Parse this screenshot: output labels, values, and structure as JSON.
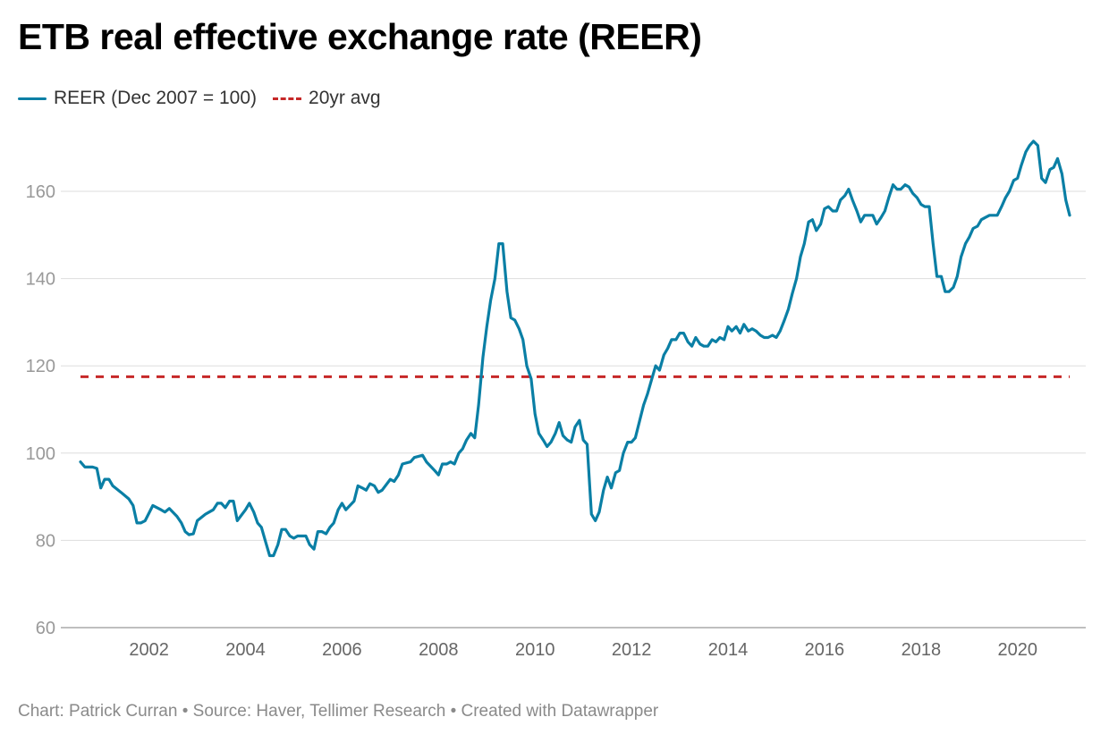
{
  "title": "ETB real effective exchange rate (REER)",
  "legend": [
    {
      "label": "REER (Dec 2007 = 100)",
      "color": "#0a7fa5",
      "style": "solid"
    },
    {
      "label": "20yr avg",
      "color": "#c62828",
      "style": "dashed"
    }
  ],
  "footer": "Chart: Patrick Curran • Source: Haver, Tellimer Research • Created with Datawrapper",
  "chart_data": {
    "type": "line",
    "title": "ETB real effective exchange rate (REER)",
    "xlabel": "",
    "ylabel": "",
    "xlim": [
      2000.5,
      2020.6
    ],
    "ylim": [
      60,
      175
    ],
    "x_ticks": [
      2002,
      2004,
      2006,
      2008,
      2010,
      2012,
      2014,
      2016,
      2018,
      2020
    ],
    "y_ticks": [
      60,
      80,
      100,
      120,
      140,
      160
    ],
    "grid": "horizontal",
    "legend_position": "top-left",
    "series": [
      {
        "name": "REER (Dec 2007 = 100)",
        "color": "#0a7fa5",
        "points": [
          [
            2000.58,
            98
          ],
          [
            2000.67,
            96.8
          ],
          [
            2000.83,
            96.8
          ],
          [
            2000.92,
            96.5
          ],
          [
            2001.0,
            92
          ],
          [
            2001.08,
            94
          ],
          [
            2001.17,
            94
          ],
          [
            2001.25,
            92.5
          ],
          [
            2001.42,
            91
          ],
          [
            2001.58,
            89.5
          ],
          [
            2001.67,
            88
          ],
          [
            2001.75,
            84
          ],
          [
            2001.83,
            84
          ],
          [
            2001.92,
            84.5
          ],
          [
            2002.08,
            88
          ],
          [
            2002.25,
            87
          ],
          [
            2002.33,
            86.5
          ],
          [
            2002.42,
            87.3
          ],
          [
            2002.58,
            85.5
          ],
          [
            2002.67,
            84
          ],
          [
            2002.75,
            82
          ],
          [
            2002.83,
            81.3
          ],
          [
            2002.92,
            81.5
          ],
          [
            2003.0,
            84.5
          ],
          [
            2003.17,
            86
          ],
          [
            2003.25,
            86.5
          ],
          [
            2003.33,
            87
          ],
          [
            2003.42,
            88.5
          ],
          [
            2003.5,
            88.5
          ],
          [
            2003.58,
            87.5
          ],
          [
            2003.67,
            89
          ],
          [
            2003.75,
            89
          ],
          [
            2003.83,
            84.5
          ],
          [
            2004.0,
            87
          ],
          [
            2004.08,
            88.5
          ],
          [
            2004.17,
            86.5
          ],
          [
            2004.25,
            84
          ],
          [
            2004.33,
            83
          ],
          [
            2004.42,
            79.5
          ],
          [
            2004.5,
            76.5
          ],
          [
            2004.58,
            76.5
          ],
          [
            2004.67,
            79
          ],
          [
            2004.75,
            82.5
          ],
          [
            2004.83,
            82.5
          ],
          [
            2004.92,
            81
          ],
          [
            2005.0,
            80.5
          ],
          [
            2005.08,
            81
          ],
          [
            2005.25,
            81
          ],
          [
            2005.33,
            79
          ],
          [
            2005.42,
            78
          ],
          [
            2005.5,
            82
          ],
          [
            2005.58,
            82
          ],
          [
            2005.67,
            81.5
          ],
          [
            2005.75,
            83
          ],
          [
            2005.83,
            84
          ],
          [
            2005.92,
            87
          ],
          [
            2006.0,
            88.5
          ],
          [
            2006.08,
            87
          ],
          [
            2006.25,
            89
          ],
          [
            2006.33,
            92.5
          ],
          [
            2006.42,
            92
          ],
          [
            2006.5,
            91.5
          ],
          [
            2006.58,
            93
          ],
          [
            2006.67,
            92.5
          ],
          [
            2006.75,
            91
          ],
          [
            2006.83,
            91.5
          ],
          [
            2007.0,
            94
          ],
          [
            2007.08,
            93.5
          ],
          [
            2007.17,
            95
          ],
          [
            2007.25,
            97.5
          ],
          [
            2007.42,
            98
          ],
          [
            2007.5,
            99
          ],
          [
            2007.67,
            99.5
          ],
          [
            2007.75,
            98
          ],
          [
            2007.92,
            96
          ],
          [
            2008.0,
            95
          ],
          [
            2008.08,
            97.5
          ],
          [
            2008.17,
            97.5
          ],
          [
            2008.25,
            98
          ],
          [
            2008.33,
            97.5
          ],
          [
            2008.42,
            100
          ],
          [
            2008.5,
            101
          ],
          [
            2008.58,
            103
          ],
          [
            2008.67,
            104.5
          ],
          [
            2008.75,
            103.5
          ],
          [
            2008.83,
            111
          ],
          [
            2008.92,
            122
          ],
          [
            2009.0,
            129
          ],
          [
            2009.08,
            135
          ],
          [
            2009.17,
            140
          ],
          [
            2009.25,
            148
          ],
          [
            2009.33,
            148
          ],
          [
            2009.42,
            137
          ],
          [
            2009.5,
            131
          ],
          [
            2009.58,
            130.5
          ],
          [
            2009.67,
            128.5
          ],
          [
            2009.75,
            126
          ],
          [
            2009.83,
            120
          ],
          [
            2009.92,
            117
          ],
          [
            2010.0,
            109
          ],
          [
            2010.08,
            104.5
          ],
          [
            2010.17,
            103
          ],
          [
            2010.25,
            101.5
          ],
          [
            2010.33,
            102.5
          ],
          [
            2010.42,
            104.5
          ],
          [
            2010.5,
            107
          ],
          [
            2010.58,
            104
          ],
          [
            2010.67,
            103
          ],
          [
            2010.75,
            102.5
          ],
          [
            2010.83,
            106
          ],
          [
            2010.92,
            107.5
          ],
          [
            2011.0,
            103
          ],
          [
            2011.08,
            102
          ],
          [
            2011.17,
            86
          ],
          [
            2011.25,
            84.5
          ],
          [
            2011.33,
            86.5
          ],
          [
            2011.42,
            91.5
          ],
          [
            2011.5,
            94.5
          ],
          [
            2011.58,
            92
          ],
          [
            2011.67,
            95.5
          ],
          [
            2011.75,
            96
          ],
          [
            2011.83,
            100
          ],
          [
            2011.92,
            102.5
          ],
          [
            2012.0,
            102.5
          ],
          [
            2012.08,
            103.5
          ],
          [
            2012.17,
            107.5
          ],
          [
            2012.25,
            111
          ],
          [
            2012.33,
            113.5
          ],
          [
            2012.42,
            117
          ],
          [
            2012.5,
            120
          ],
          [
            2012.58,
            119
          ],
          [
            2012.67,
            122.5
          ],
          [
            2012.75,
            124
          ],
          [
            2012.83,
            126
          ],
          [
            2012.92,
            126
          ],
          [
            2013.0,
            127.5
          ],
          [
            2013.08,
            127.5
          ],
          [
            2013.17,
            125.5
          ],
          [
            2013.25,
            124.5
          ],
          [
            2013.33,
            126.5
          ],
          [
            2013.42,
            125
          ],
          [
            2013.5,
            124.5
          ],
          [
            2013.58,
            124.5
          ],
          [
            2013.67,
            126
          ],
          [
            2013.75,
            125.5
          ],
          [
            2013.83,
            126.5
          ],
          [
            2013.92,
            126
          ],
          [
            2014.0,
            129
          ],
          [
            2014.08,
            128
          ],
          [
            2014.17,
            129
          ],
          [
            2014.25,
            127.5
          ],
          [
            2014.33,
            129.5
          ],
          [
            2014.42,
            128
          ],
          [
            2014.5,
            128.5
          ],
          [
            2014.58,
            128
          ],
          [
            2014.67,
            127
          ],
          [
            2014.75,
            126.5
          ],
          [
            2014.83,
            126.5
          ],
          [
            2014.92,
            127
          ],
          [
            2015.0,
            126.5
          ],
          [
            2015.08,
            128
          ],
          [
            2015.17,
            130.5
          ],
          [
            2015.25,
            133
          ],
          [
            2015.33,
            136.5
          ],
          [
            2015.42,
            140
          ],
          [
            2015.5,
            145
          ],
          [
            2015.58,
            148
          ],
          [
            2015.67,
            153
          ],
          [
            2015.75,
            153.5
          ],
          [
            2015.83,
            151
          ],
          [
            2015.92,
            152.5
          ],
          [
            2016.0,
            156
          ],
          [
            2016.08,
            156.5
          ],
          [
            2016.17,
            155.5
          ],
          [
            2016.25,
            155.5
          ],
          [
            2016.33,
            158
          ],
          [
            2016.42,
            159
          ],
          [
            2016.5,
            160.5
          ],
          [
            2016.58,
            158
          ],
          [
            2016.67,
            155.5
          ],
          [
            2016.75,
            153
          ],
          [
            2016.83,
            154.5
          ],
          [
            2016.92,
            154.5
          ],
          [
            2017.0,
            154.5
          ],
          [
            2017.08,
            152.5
          ],
          [
            2017.17,
            154
          ],
          [
            2017.25,
            155.5
          ],
          [
            2017.33,
            158.5
          ],
          [
            2017.42,
            161.5
          ],
          [
            2017.5,
            160.5
          ],
          [
            2017.58,
            160.5
          ],
          [
            2017.67,
            161.5
          ],
          [
            2017.75,
            161
          ],
          [
            2017.83,
            159.5
          ],
          [
            2017.92,
            158.5
          ],
          [
            2018.0,
            157
          ],
          [
            2018.08,
            156.5
          ],
          [
            2018.17,
            156.5
          ],
          [
            2018.25,
            148
          ],
          [
            2018.33,
            140.5
          ],
          [
            2018.42,
            140.5
          ],
          [
            2018.5,
            137
          ],
          [
            2018.58,
            137
          ],
          [
            2018.67,
            138
          ],
          [
            2018.75,
            140.5
          ],
          [
            2018.83,
            145
          ],
          [
            2018.92,
            148
          ],
          [
            2019.0,
            149.5
          ],
          [
            2019.08,
            151.5
          ],
          [
            2019.17,
            152
          ],
          [
            2019.25,
            153.5
          ],
          [
            2019.33,
            154
          ],
          [
            2019.42,
            154.5
          ],
          [
            2019.5,
            154.5
          ],
          [
            2019.58,
            154.5
          ],
          [
            2019.67,
            156.5
          ],
          [
            2019.75,
            158.5
          ],
          [
            2019.83,
            160
          ],
          [
            2019.92,
            162.5
          ],
          [
            2020.0,
            163
          ],
          [
            2020.08,
            166
          ],
          [
            2020.17,
            169
          ],
          [
            2020.25,
            170.5
          ],
          [
            2020.33,
            171.5
          ],
          [
            2020.42,
            170.5
          ],
          [
            2020.5,
            163
          ],
          [
            2020.58,
            162
          ],
          [
            2020.67,
            165
          ],
          [
            2020.75,
            165.5
          ],
          [
            2020.83,
            167.5
          ],
          [
            2020.92,
            164
          ],
          [
            2021.0,
            158
          ],
          [
            2021.08,
            154.5
          ]
        ]
      },
      {
        "name": "20yr avg",
        "color": "#c62828",
        "style": "dashed",
        "points": [
          [
            2000.58,
            117.5
          ],
          [
            2021.08,
            117.5
          ]
        ]
      }
    ]
  }
}
